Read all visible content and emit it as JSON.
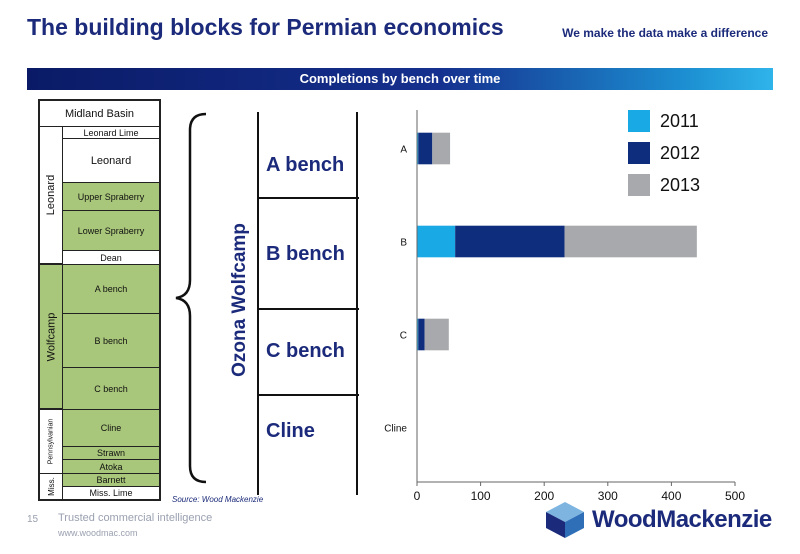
{
  "header": {
    "title": "The building blocks for Permian economics",
    "tagline": "We make the data make a difference",
    "banner": "Completions by bench over time"
  },
  "strat_column": {
    "basin": "Midland Basin",
    "layers": [
      {
        "label": "Leonard Lime",
        "green": false
      },
      {
        "label": "Leonard",
        "green": false
      },
      {
        "label": "Upper Spraberry",
        "green": true
      },
      {
        "label": "Lower Spraberry",
        "green": true
      },
      {
        "label": "Dean",
        "green": false
      },
      {
        "label": "A bench",
        "green": true
      },
      {
        "label": "B bench",
        "green": true
      },
      {
        "label": "C bench",
        "green": true
      },
      {
        "label": "Cline",
        "green": true
      },
      {
        "label": "Strawn",
        "green": true
      },
      {
        "label": "Atoka",
        "green": true
      },
      {
        "label": "Barnett",
        "green": true
      },
      {
        "label": "Miss. Lime",
        "green": false
      }
    ],
    "groups": {
      "leonard": "Leonard",
      "wolfcamp": "Wolfcamp",
      "pennsylvanian": "Pennsylvanian",
      "miss": "Miss."
    }
  },
  "ozona": {
    "title": "Ozona Wolfcamp",
    "benches": [
      "A bench",
      "B bench",
      "C bench",
      "Cline"
    ]
  },
  "source": "Source: Wood Mackenzie",
  "footer": {
    "page_number": "15",
    "trust": "Trusted commercial intelligence",
    "website": "www.woodmac.com",
    "logo_text": "WoodMackenzie"
  },
  "chart_data": {
    "type": "bar",
    "orientation": "horizontal",
    "stacked": true,
    "categories": [
      "A",
      "B",
      "C",
      "Cline"
    ],
    "series": [
      {
        "name": "2011",
        "color": "#19a9e5",
        "values": [
          2,
          60,
          2,
          0
        ]
      },
      {
        "name": "2012",
        "color": "#0f2d7d",
        "values": [
          22,
          172,
          10,
          0
        ]
      },
      {
        "name": "2013",
        "color": "#a7a9ac",
        "values": [
          28,
          208,
          38,
          0
        ]
      }
    ],
    "xlim": [
      0,
      500
    ],
    "xticks": [
      0,
      100,
      200,
      300,
      400,
      500
    ],
    "grid": false,
    "legend_position": "top-right"
  }
}
